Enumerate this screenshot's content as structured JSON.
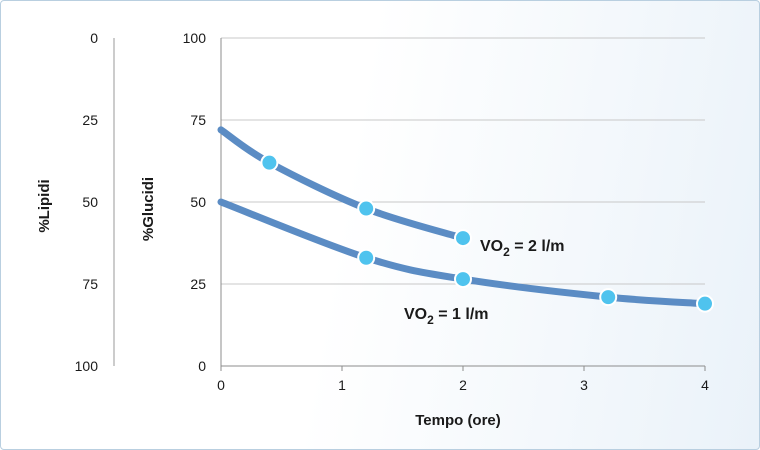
{
  "chart_data": {
    "type": "line",
    "xlabel": "Tempo (ore)",
    "ylabel": "%Glucidi",
    "secondary_ylabel": "%Lipidi",
    "xlim": [
      0,
      4
    ],
    "ylim": [
      0,
      100
    ],
    "secondary_ylim": [
      100,
      0
    ],
    "x_ticks": [
      "0",
      "1",
      "2",
      "3",
      "4"
    ],
    "y_ticks": [
      "0",
      "25",
      "50",
      "75",
      "100"
    ],
    "secondary_y_ticks": [
      "100",
      "75",
      "50",
      "25",
      "0"
    ],
    "grid": "horizontal",
    "series_color": "#5b8cc4",
    "marker_color": "#4fc3ee",
    "series": [
      {
        "label_prefix": "VO",
        "label_sub": "2",
        "label_suffix": " = 2 l/m",
        "points": [
          [
            0,
            72
          ],
          [
            0.4,
            62
          ],
          [
            1.2,
            48
          ],
          [
            2,
            39
          ]
        ],
        "markers": [
          [
            0.4,
            62
          ],
          [
            1.2,
            48
          ],
          [
            2,
            39
          ]
        ]
      },
      {
        "label_prefix": "VO",
        "label_sub": "2",
        "label_suffix": " = 1 l/m",
        "points": [
          [
            0,
            50
          ],
          [
            1.2,
            33
          ],
          [
            2,
            26.5
          ],
          [
            3.2,
            21
          ],
          [
            4,
            19
          ]
        ],
        "markers": [
          [
            1.2,
            33
          ],
          [
            2,
            26.5
          ],
          [
            3.2,
            21
          ],
          [
            4,
            19
          ]
        ]
      }
    ]
  }
}
